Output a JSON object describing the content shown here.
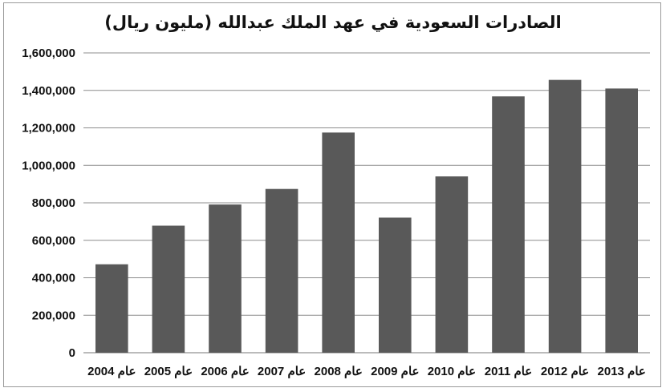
{
  "chart_data": {
    "type": "bar",
    "title": "الصادرات السعودية في عهد الملك عبدالله (مليون ريال)",
    "xlabel": "",
    "ylabel": "",
    "categories": [
      "عام 2004",
      "عام 2005",
      "عام 2006",
      "عام 2007",
      "عام 2008",
      "عام 2009",
      "عام 2010",
      "عام 2011",
      "عام 2012",
      "عام 2013"
    ],
    "values": [
      472000,
      678000,
      791000,
      874000,
      1175000,
      721000,
      941000,
      1368000,
      1456000,
      1410000
    ],
    "ylim": [
      0,
      1600000
    ],
    "yticks": [
      "0",
      "200,000",
      "400,000",
      "600,000",
      "800,000",
      "1,000,000",
      "1,200,000",
      "1,400,000",
      "1,600,000"
    ],
    "grid": true,
    "colors": {
      "bar": "#595959",
      "grid": "#8c8c8c"
    }
  }
}
